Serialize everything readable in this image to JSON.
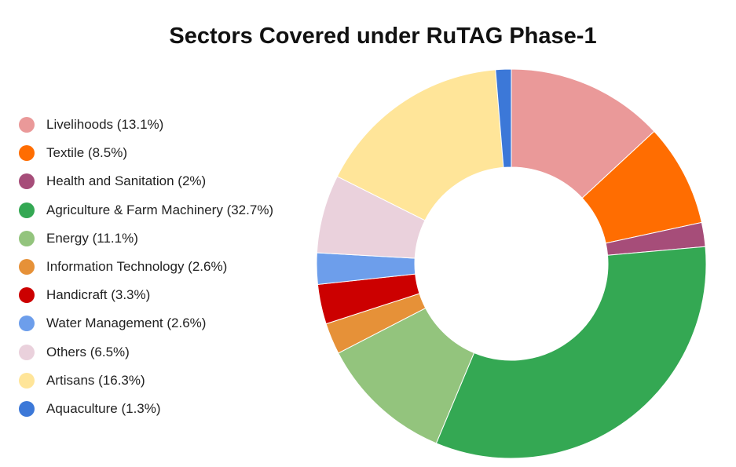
{
  "chart_data": {
    "type": "pie",
    "variant": "donut",
    "title": "Sectors Covered under RuTAG Phase-1",
    "legend_position": "left",
    "categories": [
      "Livelihoods",
      "Textile",
      "Health and Sanitation",
      "Agriculture & Farm Machinery",
      "Energy",
      "Information Technology",
      "Handicraft",
      "Water Management",
      "Others",
      "Artisans",
      "Aquaculture"
    ],
    "values": [
      13.1,
      8.5,
      2,
      32.7,
      11.1,
      2.6,
      3.3,
      2.6,
      6.5,
      16.3,
      1.3
    ],
    "unit": "%",
    "legend_labels": [
      "Livelihoods (13.1%)",
      "Textile (8.5%)",
      "Health and Sanitation (2%)",
      "Agriculture & Farm Machinery (32.7%)",
      "Energy (11.1%)",
      "Information Technology (2.6%)",
      "Handicraft (3.3%)",
      "Water Management (2.6%)",
      "Others (6.5%)",
      "Artisans (16.3%)",
      "Aquaculture (1.3%)"
    ],
    "colors": [
      "#ea9999",
      "#ff6d01",
      "#a64d79",
      "#34a853",
      "#93c47d",
      "#e69138",
      "#cc0000",
      "#6d9eeb",
      "#ead1dc",
      "#ffe599",
      "#3c78d8"
    ]
  }
}
